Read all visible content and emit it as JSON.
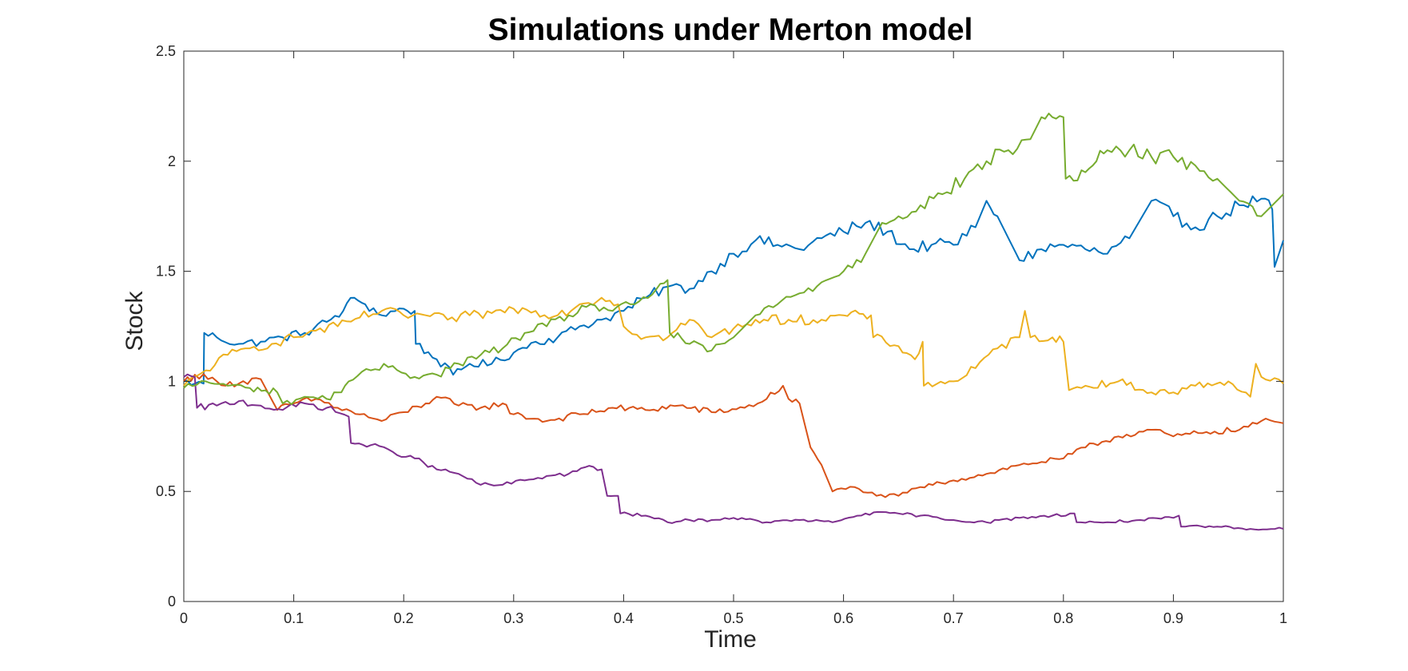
{
  "chart_data": {
    "type": "line",
    "title": "Simulations under Merton model",
    "xlabel": "Time",
    "ylabel": "Stock",
    "xlim": [
      0,
      1
    ],
    "ylim": [
      0,
      2.5
    ],
    "grid": false,
    "legend": "none",
    "x_ticks": [
      "0",
      "0.1",
      "0.2",
      "0.3",
      "0.4",
      "0.5",
      "0.6",
      "0.7",
      "0.8",
      "0.9",
      "1"
    ],
    "y_ticks": [
      "0",
      "0.5",
      "1",
      "1.5",
      "2",
      "2.5"
    ],
    "series": [
      {
        "color": "#0072BD",
        "points": [
          [
            0,
            1.0
          ],
          [
            0.01,
            0.99
          ],
          [
            0.018,
            0.99
          ],
          [
            0.0185,
            1.22
          ],
          [
            0.03,
            1.2
          ],
          [
            0.05,
            1.17
          ],
          [
            0.07,
            1.18
          ],
          [
            0.09,
            1.2
          ],
          [
            0.11,
            1.22
          ],
          [
            0.13,
            1.27
          ],
          [
            0.145,
            1.32
          ],
          [
            0.155,
            1.38
          ],
          [
            0.165,
            1.35
          ],
          [
            0.18,
            1.3
          ],
          [
            0.2,
            1.33
          ],
          [
            0.21,
            1.32
          ],
          [
            0.211,
            1.17
          ],
          [
            0.23,
            1.1
          ],
          [
            0.245,
            1.03
          ],
          [
            0.26,
            1.08
          ],
          [
            0.28,
            1.08
          ],
          [
            0.3,
            1.13
          ],
          [
            0.32,
            1.18
          ],
          [
            0.34,
            1.2
          ],
          [
            0.36,
            1.25
          ],
          [
            0.38,
            1.28
          ],
          [
            0.4,
            1.32
          ],
          [
            0.42,
            1.38
          ],
          [
            0.44,
            1.43
          ],
          [
            0.46,
            1.42
          ],
          [
            0.48,
            1.5
          ],
          [
            0.5,
            1.58
          ],
          [
            0.52,
            1.64
          ],
          [
            0.54,
            1.62
          ],
          [
            0.56,
            1.6
          ],
          [
            0.58,
            1.65
          ],
          [
            0.6,
            1.68
          ],
          [
            0.62,
            1.72
          ],
          [
            0.64,
            1.68
          ],
          [
            0.66,
            1.6
          ],
          [
            0.68,
            1.62
          ],
          [
            0.7,
            1.62
          ],
          [
            0.72,
            1.7
          ],
          [
            0.73,
            1.82
          ],
          [
            0.74,
            1.75
          ],
          [
            0.75,
            1.65
          ],
          [
            0.76,
            1.55
          ],
          [
            0.78,
            1.6
          ],
          [
            0.8,
            1.62
          ],
          [
            0.82,
            1.6
          ],
          [
            0.84,
            1.58
          ],
          [
            0.86,
            1.65
          ],
          [
            0.88,
            1.82
          ],
          [
            0.9,
            1.75
          ],
          [
            0.92,
            1.7
          ],
          [
            0.94,
            1.75
          ],
          [
            0.96,
            1.8
          ],
          [
            0.98,
            1.83
          ],
          [
            0.99,
            1.78
          ],
          [
            0.992,
            1.52
          ],
          [
            1,
            1.64
          ]
        ]
      },
      {
        "color": "#D95319",
        "points": [
          [
            0,
            1.0
          ],
          [
            0.01,
            1.03
          ],
          [
            0.03,
            1.0
          ],
          [
            0.05,
            0.99
          ],
          [
            0.07,
            1.01
          ],
          [
            0.085,
            0.87
          ],
          [
            0.1,
            0.9
          ],
          [
            0.12,
            0.92
          ],
          [
            0.14,
            0.88
          ],
          [
            0.16,
            0.85
          ],
          [
            0.18,
            0.82
          ],
          [
            0.2,
            0.86
          ],
          [
            0.22,
            0.9
          ],
          [
            0.23,
            0.93
          ],
          [
            0.25,
            0.89
          ],
          [
            0.27,
            0.88
          ],
          [
            0.29,
            0.9
          ],
          [
            0.3,
            0.85
          ],
          [
            0.33,
            0.82
          ],
          [
            0.36,
            0.85
          ],
          [
            0.39,
            0.88
          ],
          [
            0.42,
            0.87
          ],
          [
            0.45,
            0.89
          ],
          [
            0.48,
            0.86
          ],
          [
            0.51,
            0.88
          ],
          [
            0.53,
            0.92
          ],
          [
            0.545,
            0.98
          ],
          [
            0.55,
            0.92
          ],
          [
            0.56,
            0.9
          ],
          [
            0.57,
            0.7
          ],
          [
            0.58,
            0.62
          ],
          [
            0.59,
            0.5
          ],
          [
            0.61,
            0.52
          ],
          [
            0.63,
            0.48
          ],
          [
            0.65,
            0.48
          ],
          [
            0.67,
            0.52
          ],
          [
            0.7,
            0.55
          ],
          [
            0.73,
            0.58
          ],
          [
            0.76,
            0.62
          ],
          [
            0.8,
            0.65
          ],
          [
            0.82,
            0.7
          ],
          [
            0.85,
            0.75
          ],
          [
            0.88,
            0.78
          ],
          [
            0.9,
            0.75
          ],
          [
            0.93,
            0.77
          ],
          [
            0.96,
            0.78
          ],
          [
            0.98,
            0.82
          ],
          [
            1,
            0.81
          ]
        ]
      },
      {
        "color": "#EDB120",
        "points": [
          [
            0,
            0.98
          ],
          [
            0.02,
            1.05
          ],
          [
            0.04,
            1.12
          ],
          [
            0.06,
            1.15
          ],
          [
            0.08,
            1.17
          ],
          [
            0.1,
            1.2
          ],
          [
            0.12,
            1.23
          ],
          [
            0.14,
            1.25
          ],
          [
            0.16,
            1.29
          ],
          [
            0.18,
            1.32
          ],
          [
            0.2,
            1.3
          ],
          [
            0.22,
            1.3
          ],
          [
            0.24,
            1.28
          ],
          [
            0.26,
            1.3
          ],
          [
            0.28,
            1.31
          ],
          [
            0.3,
            1.33
          ],
          [
            0.32,
            1.32
          ],
          [
            0.34,
            1.3
          ],
          [
            0.36,
            1.35
          ],
          [
            0.38,
            1.38
          ],
          [
            0.395,
            1.35
          ],
          [
            0.4,
            1.25
          ],
          [
            0.42,
            1.2
          ],
          [
            0.44,
            1.2
          ],
          [
            0.46,
            1.28
          ],
          [
            0.48,
            1.2
          ],
          [
            0.5,
            1.24
          ],
          [
            0.52,
            1.28
          ],
          [
            0.55,
            1.28
          ],
          [
            0.58,
            1.28
          ],
          [
            0.6,
            1.3
          ],
          [
            0.625,
            1.3
          ],
          [
            0.627,
            1.2
          ],
          [
            0.65,
            1.16
          ],
          [
            0.665,
            1.1
          ],
          [
            0.672,
            1.18
          ],
          [
            0.673,
            0.98
          ],
          [
            0.7,
            1.0
          ],
          [
            0.72,
            1.06
          ],
          [
            0.74,
            1.15
          ],
          [
            0.76,
            1.2
          ],
          [
            0.765,
            1.32
          ],
          [
            0.77,
            1.2
          ],
          [
            0.79,
            1.2
          ],
          [
            0.8,
            1.18
          ],
          [
            0.805,
            0.96
          ],
          [
            0.82,
            0.98
          ],
          [
            0.85,
            1.0
          ],
          [
            0.88,
            0.95
          ],
          [
            0.9,
            0.95
          ],
          [
            0.92,
            0.98
          ],
          [
            0.95,
            1.0
          ],
          [
            0.97,
            0.93
          ],
          [
            0.975,
            1.08
          ],
          [
            0.98,
            1.02
          ],
          [
            1,
            0.99
          ]
        ]
      },
      {
        "color": "#7E2F8E",
        "points": [
          [
            0,
            1.02
          ],
          [
            0.01,
            1.02
          ],
          [
            0.012,
            0.88
          ],
          [
            0.03,
            0.89
          ],
          [
            0.05,
            0.91
          ],
          [
            0.07,
            0.89
          ],
          [
            0.09,
            0.87
          ],
          [
            0.11,
            0.9
          ],
          [
            0.13,
            0.88
          ],
          [
            0.15,
            0.84
          ],
          [
            0.152,
            0.72
          ],
          [
            0.17,
            0.71
          ],
          [
            0.19,
            0.68
          ],
          [
            0.21,
            0.65
          ],
          [
            0.23,
            0.6
          ],
          [
            0.25,
            0.58
          ],
          [
            0.27,
            0.53
          ],
          [
            0.29,
            0.53
          ],
          [
            0.31,
            0.55
          ],
          [
            0.33,
            0.57
          ],
          [
            0.35,
            0.58
          ],
          [
            0.365,
            0.61
          ],
          [
            0.38,
            0.6
          ],
          [
            0.385,
            0.48
          ],
          [
            0.395,
            0.48
          ],
          [
            0.397,
            0.4
          ],
          [
            0.42,
            0.39
          ],
          [
            0.44,
            0.36
          ],
          [
            0.46,
            0.37
          ],
          [
            0.48,
            0.37
          ],
          [
            0.5,
            0.38
          ],
          [
            0.53,
            0.36
          ],
          [
            0.56,
            0.37
          ],
          [
            0.59,
            0.36
          ],
          [
            0.62,
            0.4
          ],
          [
            0.65,
            0.4
          ],
          [
            0.67,
            0.39
          ],
          [
            0.7,
            0.37
          ],
          [
            0.73,
            0.36
          ],
          [
            0.76,
            0.38
          ],
          [
            0.79,
            0.39
          ],
          [
            0.81,
            0.4
          ],
          [
            0.812,
            0.36
          ],
          [
            0.84,
            0.36
          ],
          [
            0.87,
            0.37
          ],
          [
            0.9,
            0.38
          ],
          [
            0.905,
            0.39
          ],
          [
            0.907,
            0.34
          ],
          [
            0.94,
            0.34
          ],
          [
            0.97,
            0.33
          ],
          [
            1,
            0.33
          ]
        ]
      },
      {
        "color": "#77AC30",
        "points": [
          [
            0,
            0.97
          ],
          [
            0.02,
            1.0
          ],
          [
            0.04,
            0.98
          ],
          [
            0.06,
            0.97
          ],
          [
            0.085,
            0.95
          ],
          [
            0.09,
            0.9
          ],
          [
            0.11,
            0.93
          ],
          [
            0.13,
            0.92
          ],
          [
            0.14,
            0.95
          ],
          [
            0.15,
            1.0
          ],
          [
            0.17,
            1.05
          ],
          [
            0.19,
            1.07
          ],
          [
            0.21,
            1.02
          ],
          [
            0.23,
            1.03
          ],
          [
            0.25,
            1.08
          ],
          [
            0.27,
            1.12
          ],
          [
            0.29,
            1.15
          ],
          [
            0.31,
            1.22
          ],
          [
            0.33,
            1.25
          ],
          [
            0.35,
            1.3
          ],
          [
            0.37,
            1.35
          ],
          [
            0.39,
            1.32
          ],
          [
            0.41,
            1.35
          ],
          [
            0.43,
            1.42
          ],
          [
            0.44,
            1.46
          ],
          [
            0.442,
            1.22
          ],
          [
            0.46,
            1.17
          ],
          [
            0.48,
            1.14
          ],
          [
            0.5,
            1.2
          ],
          [
            0.52,
            1.3
          ],
          [
            0.54,
            1.35
          ],
          [
            0.56,
            1.4
          ],
          [
            0.58,
            1.45
          ],
          [
            0.6,
            1.5
          ],
          [
            0.62,
            1.58
          ],
          [
            0.635,
            1.72
          ],
          [
            0.65,
            1.75
          ],
          [
            0.67,
            1.8
          ],
          [
            0.69,
            1.85
          ],
          [
            0.71,
            1.92
          ],
          [
            0.73,
            2.0
          ],
          [
            0.75,
            2.05
          ],
          [
            0.77,
            2.1
          ],
          [
            0.78,
            2.2
          ],
          [
            0.79,
            2.2
          ],
          [
            0.8,
            2.2
          ],
          [
            0.802,
            1.92
          ],
          [
            0.82,
            1.95
          ],
          [
            0.83,
            2.0
          ],
          [
            0.84,
            2.05
          ],
          [
            0.86,
            2.05
          ],
          [
            0.88,
            2.02
          ],
          [
            0.9,
            2.02
          ],
          [
            0.92,
            1.98
          ],
          [
            0.94,
            1.92
          ],
          [
            0.96,
            1.82
          ],
          [
            0.98,
            1.75
          ],
          [
            1,
            1.85
          ]
        ]
      }
    ]
  }
}
